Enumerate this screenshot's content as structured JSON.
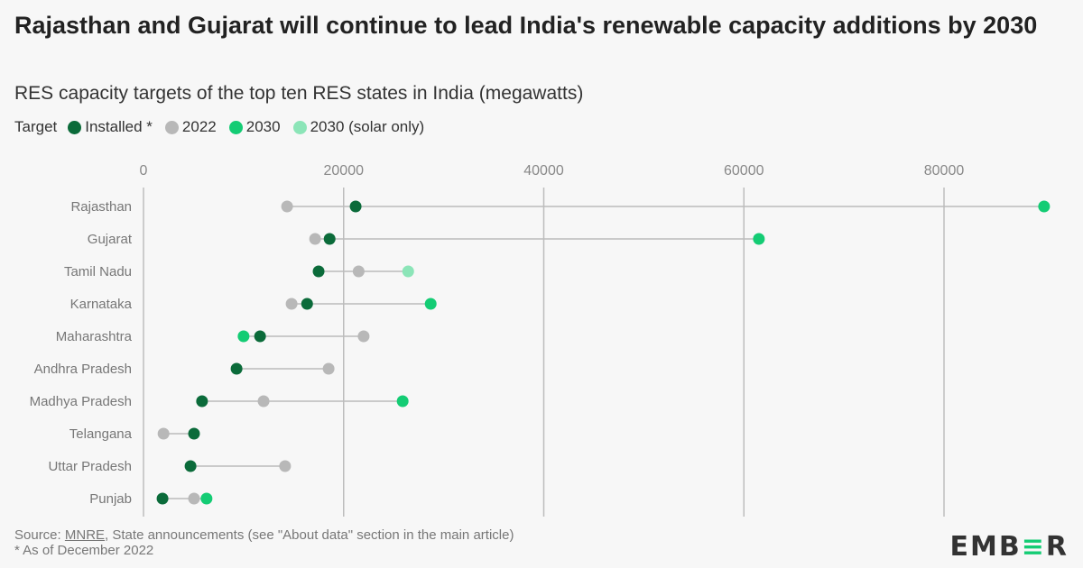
{
  "title": "Rajasthan and Gujarat will continue to lead India's renewable capacity additions by 2030",
  "subtitle": "RES capacity targets of the top ten RES states in India (megawatts)",
  "legend": {
    "title": "Target",
    "items": [
      {
        "label": "Installed *",
        "color": "#0b6b3a"
      },
      {
        "label": "2022",
        "color": "#b8b8b8"
      },
      {
        "label": "2030",
        "color": "#14cc74"
      },
      {
        "label": "2030 (solar only)",
        "color": "#8ce5b8"
      }
    ]
  },
  "chart_data": {
    "type": "dot-plot",
    "x_ticks": [
      0,
      20000,
      40000,
      60000,
      80000
    ],
    "xlim": [
      0,
      90000
    ],
    "grid": true,
    "legend_position": "top-left",
    "categories": [
      "Rajasthan",
      "Gujarat",
      "Tamil Nadu",
      "Karnataka",
      "Maharashtra",
      "Andhra Pradesh",
      "Madhya Pradesh",
      "Telangana",
      "Uttar Pradesh",
      "Punjab"
    ],
    "series": [
      {
        "name": "Installed *",
        "values": [
          21200,
          18600,
          17500,
          16350,
          11650,
          9300,
          5850,
          5050,
          4700,
          1900
        ]
      },
      {
        "name": "2022",
        "values": [
          14350,
          17150,
          21500,
          14800,
          22000,
          18500,
          12000,
          2000,
          14150,
          5050
        ]
      },
      {
        "name": "2030",
        "values": [
          90000,
          61500,
          null,
          28700,
          10000,
          null,
          25900,
          null,
          null,
          6300
        ]
      },
      {
        "name": "2030 (solar only)",
        "values": [
          null,
          null,
          26450,
          null,
          null,
          null,
          null,
          null,
          null,
          null
        ]
      }
    ]
  },
  "footer": {
    "source_prefix": "Source: ",
    "source_link": "MNRE",
    "source_rest": ", State announcements (see \"About data\" section in the main article)",
    "note": "* As of December 2022"
  },
  "logo": "EMBER"
}
